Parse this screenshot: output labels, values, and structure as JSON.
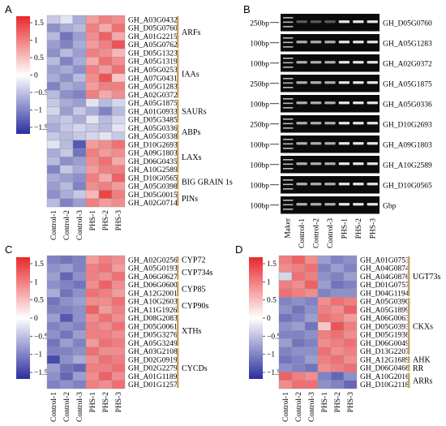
{
  "panels": {
    "A": {
      "label": "A",
      "scale": {
        "ticks": [
          "1.5",
          "1",
          "0.5",
          "0",
          "−0.5",
          "−1",
          "−1.5"
        ],
        "range": [
          -1.5,
          1.5
        ]
      },
      "columns": [
        "Control-1",
        "Control-2",
        "Control-3",
        "PHS-1",
        "PHS-2",
        "PHS-3"
      ],
      "genes": [
        "GH_A03G0432",
        "GH_D05G0760",
        "GH_A01G2215",
        "GH_A05G0762",
        "GH_D05G1323",
        "GH_A05G1319",
        "GH_A05G0253",
        "GH_A07G0431",
        "GH_A05G1283",
        "GH_A02G0372",
        "GH_A05G1875",
        "GH_A01G0933",
        "GH_D05G3485",
        "GH_A05G0336",
        "GH_A05G0338",
        "GH_D10G2693",
        "GH_A09G1803",
        "GH_D06G0435",
        "GH_A10G2589",
        "GH_D10G0565",
        "GH_A05G0398",
        "GH_D05G0015",
        "GH_A02G0714"
      ],
      "groups": [
        {
          "label": "ARFs",
          "start": 0,
          "end": 3
        },
        {
          "label": "IAAs",
          "start": 4,
          "end": 9
        },
        {
          "label": "SAURs",
          "start": 10,
          "end": 12
        },
        {
          "label": "ABPs",
          "start": 13,
          "end": 14
        },
        {
          "label": "LAXs",
          "start": 15,
          "end": 18
        },
        {
          "label": "BIG GRAIN 1s",
          "start": 19,
          "end": 20
        },
        {
          "label": "PINs",
          "start": 21,
          "end": 22
        }
      ],
      "values": [
        [
          -0.4,
          -0.2,
          -0.6,
          0.7,
          0.9,
          0.8
        ],
        [
          -0.8,
          -0.6,
          -0.5,
          0.9,
          0.6,
          1.0
        ],
        [
          -0.5,
          -1.0,
          -0.7,
          0.8,
          1.1,
          0.6
        ],
        [
          -0.7,
          -0.9,
          -0.6,
          0.7,
          0.9,
          1.2
        ],
        [
          -0.8,
          -0.5,
          -0.7,
          0.9,
          0.8,
          0.5
        ],
        [
          -0.5,
          -0.9,
          -0.6,
          0.6,
          1.0,
          0.8
        ],
        [
          -0.7,
          -0.6,
          -0.8,
          0.9,
          0.7,
          1.0
        ],
        [
          -0.6,
          -0.8,
          -0.5,
          0.8,
          1.2,
          0.4
        ],
        [
          -0.9,
          -0.6,
          -0.7,
          0.7,
          0.9,
          0.9
        ],
        [
          -0.5,
          -0.8,
          -0.9,
          0.9,
          0.6,
          0.8
        ],
        [
          -0.4,
          -0.6,
          -0.7,
          -0.2,
          -0.5,
          -0.3
        ],
        [
          -0.3,
          -0.7,
          -0.4,
          -0.6,
          -0.9,
          -0.5
        ],
        [
          -0.5,
          -0.4,
          -0.6,
          -0.2,
          -0.5,
          -0.3
        ],
        [
          -0.6,
          -0.4,
          -0.3,
          -0.4,
          -0.5,
          -0.2
        ],
        [
          -0.4,
          -0.5,
          -0.4,
          -0.3,
          -0.2,
          -0.4
        ],
        [
          -0.2,
          -0.5,
          -1.2,
          0.7,
          0.8,
          1.0
        ],
        [
          -0.6,
          -0.4,
          -1.0,
          0.9,
          0.7,
          0.8
        ],
        [
          -0.5,
          -0.8,
          -0.7,
          0.8,
          1.0,
          0.6
        ],
        [
          -0.9,
          -0.4,
          -0.6,
          0.7,
          0.9,
          0.9
        ],
        [
          -0.6,
          -0.7,
          -0.8,
          0.9,
          0.6,
          1.1
        ],
        [
          -0.7,
          -0.5,
          -0.9,
          0.8,
          0.9,
          0.7
        ],
        [
          -0.8,
          -0.6,
          -0.4,
          0.5,
          1.3,
          0.9
        ],
        [
          -0.5,
          -0.9,
          -0.7,
          0.9,
          0.7,
          0.8
        ]
      ]
    },
    "B": {
      "label": "B",
      "lanes": [
        "Maker",
        "Control-1",
        "Control-2",
        "Control-3",
        "PHS-1",
        "PHS-2",
        "PHS-3"
      ],
      "rows": [
        {
          "size": "250bp",
          "gene": "GH_D05G0760"
        },
        {
          "size": "100bp",
          "gene": "GH_A05G1283"
        },
        {
          "size": "100bp",
          "gene": "GH_A02G0372"
        },
        {
          "size": "250bp",
          "gene": "GH_A05G1875"
        },
        {
          "size": "100bp",
          "gene": "GH_A05G0336"
        },
        {
          "size": "250bp",
          "gene": "GH_D10G2693"
        },
        {
          "size": "100bp",
          "gene": "GH_A09G1803"
        },
        {
          "size": "100bp",
          "gene": "GH_A10G2589"
        },
        {
          "size": "100bp",
          "gene": "GH_D10G0565"
        },
        {
          "size": "100bp",
          "gene": "Gbp"
        }
      ]
    },
    "C": {
      "label": "C",
      "scale": {
        "ticks": [
          "1.5",
          "1",
          "0.5",
          "0",
          "−0.5",
          "−1",
          "−1.5"
        ],
        "range": [
          -1.5,
          1.5
        ]
      },
      "columns": [
        "Control-1",
        "Control-2",
        "Control-3",
        "PHS-1",
        "PHS-2",
        "PHS-3"
      ],
      "genes": [
        "GH_A02G0256",
        "GH_A05G0193",
        "GH_A06G0627",
        "GH_D06G0600",
        "GH_A12G2001",
        "GH_A10G2603",
        "GH_A11G1926",
        "GH_D08G2083",
        "GH_D05G0061",
        "GH_D05G3276",
        "GH_A05G3249",
        "GH_A03G2108",
        "GH_D02G0919",
        "GH_D02G2279",
        "GH_A01G1189",
        "GH_D01G1257"
      ],
      "groups": [
        {
          "label": "CYP72",
          "start": 0,
          "end": 0
        },
        {
          "label": "CYP734s",
          "start": 1,
          "end": 2
        },
        {
          "label": "CYP85",
          "start": 3,
          "end": 4
        },
        {
          "label": "CYP90s",
          "start": 5,
          "end": 6
        },
        {
          "label": "XTHs",
          "start": 7,
          "end": 10
        },
        {
          "label": "CYCDs",
          "start": 11,
          "end": 15
        }
      ],
      "values": [
        [
          -0.9,
          -1.0,
          -0.9,
          0.7,
          0.9,
          0.8
        ],
        [
          -0.8,
          -0.7,
          -0.9,
          0.9,
          1.0,
          0.7
        ],
        [
          -0.7,
          -1.1,
          -0.8,
          0.9,
          0.8,
          1.0
        ],
        [
          -0.8,
          -0.9,
          -1.0,
          0.8,
          1.1,
          0.8
        ],
        [
          -0.6,
          -1.0,
          -0.8,
          1.0,
          0.9,
          0.7
        ],
        [
          -1.0,
          -0.8,
          -0.7,
          0.8,
          0.8,
          1.0
        ],
        [
          -0.9,
          -0.9,
          -0.8,
          1.1,
          0.7,
          0.9
        ],
        [
          -0.7,
          -1.2,
          -0.8,
          0.8,
          1.0,
          0.8
        ],
        [
          -0.9,
          -0.8,
          -0.9,
          0.9,
          0.8,
          1.0
        ],
        [
          -0.8,
          -1.0,
          -0.7,
          0.9,
          0.9,
          0.8
        ],
        [
          -1.0,
          -0.7,
          -0.9,
          0.7,
          1.0,
          0.9
        ],
        [
          -0.9,
          -0.9,
          -0.8,
          1.0,
          0.8,
          0.8
        ],
        [
          -1.3,
          -0.8,
          -0.6,
          0.8,
          1.0,
          0.9
        ],
        [
          -0.7,
          -1.0,
          -1.1,
          0.9,
          0.9,
          1.0
        ],
        [
          -0.8,
          -1.1,
          -0.7,
          0.8,
          1.1,
          0.8
        ],
        [
          -0.9,
          -0.8,
          -0.9,
          0.9,
          0.8,
          1.0
        ]
      ]
    },
    "D": {
      "label": "D",
      "scale": {
        "ticks": [
          "1.5",
          "1",
          "0.5",
          "0",
          "−0.5",
          "−1",
          "−1.5"
        ],
        "range": [
          -1.5,
          1.5
        ]
      },
      "columns": [
        "Control-1",
        "Control-2",
        "Control-3",
        "PHS-1",
        "PHS-2",
        "PHS-3"
      ],
      "genes": [
        "GH_A01G0753",
        "GH_A04G0874",
        "GH_A04G0876",
        "GH_D01G0757",
        "GH_D04G1194",
        "GH_A05G0390",
        "GH_A05G1899",
        "GH_A06G0063",
        "GH_D05G0393",
        "GH_D05G1936",
        "GH_D06G0049",
        "GH_D13G2207",
        "GH_A12G1689",
        "GH_D06G0466",
        "GH_A10G2016",
        "GH_D10G2118"
      ],
      "groups": [
        {
          "label": "UGT73s",
          "start": 0,
          "end": 4
        },
        {
          "label": "CKXs",
          "start": 5,
          "end": 11
        },
        {
          "label": "AHK",
          "start": 12,
          "end": 12
        },
        {
          "label": "RR",
          "start": 13,
          "end": 13
        },
        {
          "label": "ARRs",
          "start": 14,
          "end": 15
        }
      ],
      "values": [
        [
          0.9,
          1.1,
          0.8,
          -0.7,
          -0.9,
          -0.8
        ],
        [
          0.8,
          0.9,
          1.0,
          -0.9,
          -0.7,
          -0.9
        ],
        [
          -0.3,
          1.0,
          0.9,
          -0.8,
          -0.9,
          -0.7
        ],
        [
          0.9,
          0.8,
          1.1,
          -0.7,
          -1.0,
          -0.9
        ],
        [
          1.0,
          0.9,
          0.8,
          -0.9,
          -0.8,
          -0.8
        ],
        [
          -0.9,
          -0.8,
          -0.9,
          0.8,
          1.0,
          0.9
        ],
        [
          -0.8,
          -1.0,
          -0.8,
          0.9,
          0.8,
          1.1
        ],
        [
          -1.0,
          -0.9,
          -0.7,
          1.0,
          0.9,
          0.7
        ],
        [
          -0.8,
          -0.7,
          -1.0,
          0.4,
          1.2,
          0.9
        ],
        [
          -0.9,
          -0.9,
          -0.8,
          0.9,
          1.0,
          0.8
        ],
        [
          -0.7,
          -1.0,
          -0.9,
          0.8,
          0.9,
          1.0
        ],
        [
          -0.9,
          -0.8,
          -0.8,
          1.0,
          0.8,
          0.9
        ],
        [
          -1.0,
          -0.9,
          -0.7,
          0.9,
          1.0,
          0.8
        ],
        [
          -0.8,
          -0.9,
          -1.0,
          0.8,
          0.9,
          1.0
        ],
        [
          1.1,
          0.9,
          0.8,
          -0.9,
          -1.1,
          -0.8
        ],
        [
          0.8,
          1.0,
          1.0,
          -0.8,
          -0.9,
          -1.1
        ]
      ]
    }
  },
  "colors": {
    "high": "#e8282b",
    "mid": "#ffffff",
    "low": "#2b2f9e",
    "group_bracket": "#c8a26a",
    "gel_bg": "#0b0b0b"
  }
}
